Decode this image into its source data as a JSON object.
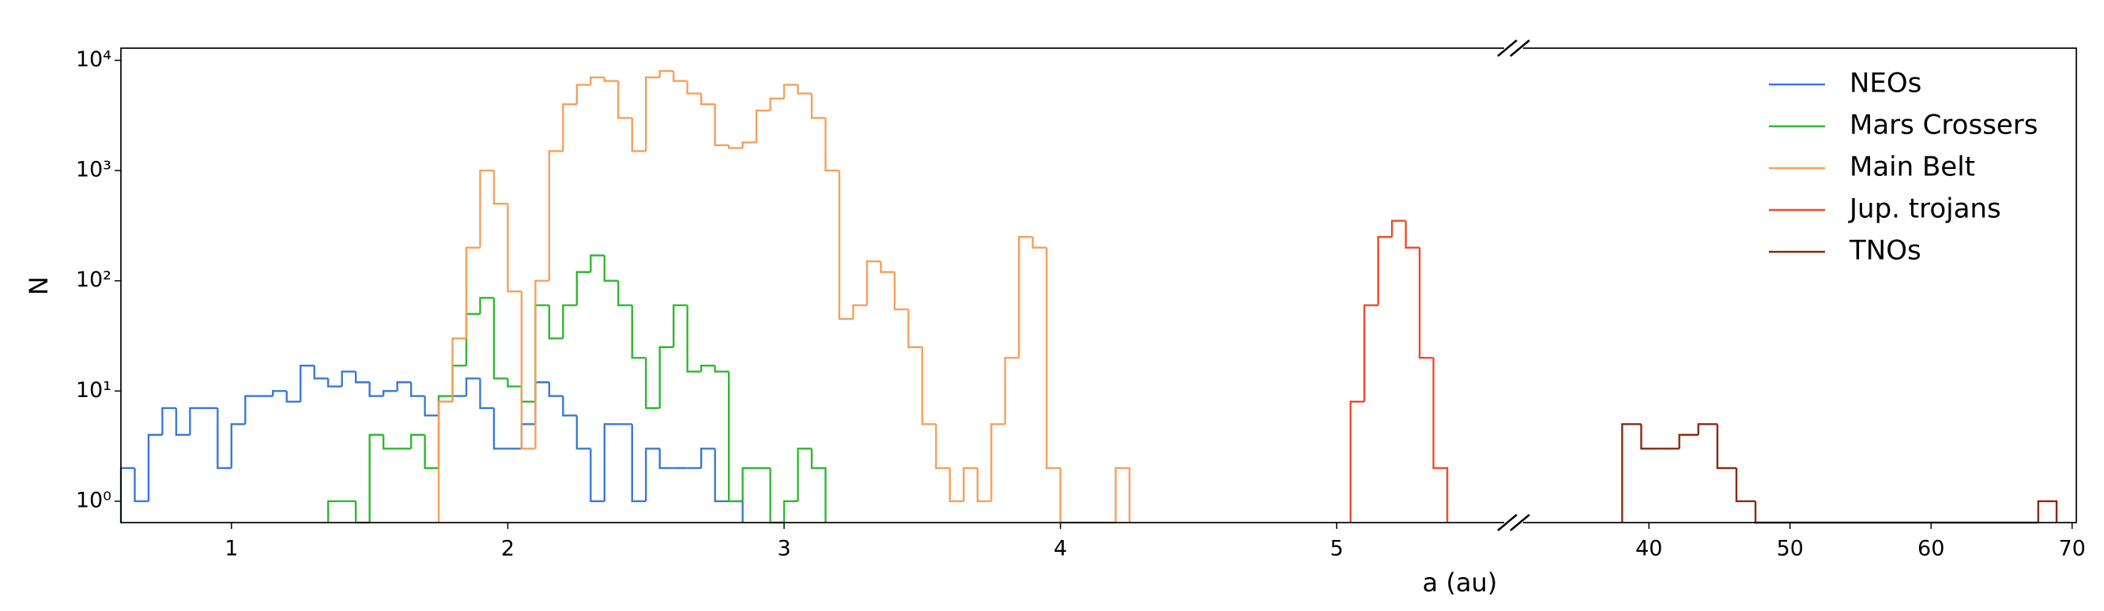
{
  "chart_data": {
    "type": "histogram",
    "xlabel": "a (au)",
    "ylabel": "N",
    "log_y": true,
    "legend": "upper right",
    "xlim": [
      0.6,
      5.64
    ],
    "xticks": [
      1,
      2,
      3,
      4,
      5
    ],
    "xlim_right": [
      30.4,
      70.3
    ],
    "xticks_right": [
      40,
      50,
      60,
      70
    ],
    "ylim": [
      0.64,
      12900
    ],
    "yticks": [
      {
        "value": 1,
        "label": "10⁰"
      },
      {
        "value": 10,
        "label": "10¹"
      },
      {
        "value": 100,
        "label": "10²"
      },
      {
        "value": 1000,
        "label": "10³"
      },
      {
        "value": 10000,
        "label": "10⁴"
      }
    ],
    "series": [
      {
        "name": "NEOs",
        "color": "#3a78d6",
        "panel": "left",
        "bins": [
          0.6,
          0.65,
          0.7,
          0.75,
          0.8,
          0.85,
          0.9,
          0.95,
          1.0,
          1.05,
          1.1,
          1.15,
          1.2,
          1.25,
          1.3,
          1.35,
          1.4,
          1.45,
          1.5,
          1.55,
          1.6,
          1.65,
          1.7,
          1.75,
          1.8,
          1.85,
          1.9,
          1.95,
          2.0,
          2.05,
          2.1,
          2.15,
          2.2,
          2.25,
          2.3,
          2.35,
          2.4,
          2.45,
          2.5,
          2.55,
          2.6,
          2.65,
          2.7,
          2.75,
          2.8,
          2.85
        ],
        "values": [
          2,
          1,
          4,
          7,
          4,
          7,
          7,
          2,
          5,
          9,
          9,
          10,
          8,
          17,
          13,
          11,
          15,
          12,
          9,
          10,
          12,
          9,
          6,
          8,
          9,
          13,
          7,
          3,
          3,
          5,
          12,
          9,
          6,
          3,
          1,
          5,
          5,
          1,
          3,
          2,
          2,
          2,
          3,
          1,
          1
        ]
      },
      {
        "name": "Mars Crossers",
        "color": "#2eb82e",
        "panel": "left",
        "bins": [
          1.35,
          1.4,
          1.45,
          1.5,
          1.55,
          1.6,
          1.65,
          1.7,
          1.75,
          1.8,
          1.85,
          1.9,
          1.95,
          2.0,
          2.05,
          2.1,
          2.15,
          2.2,
          2.25,
          2.3,
          2.35,
          2.4,
          2.45,
          2.5,
          2.55,
          2.6,
          2.65,
          2.7,
          2.75,
          2.8,
          2.85,
          2.9,
          2.95,
          3.0,
          3.05,
          3.1,
          3.15
        ],
        "values": [
          1,
          1,
          0,
          4,
          3,
          3,
          4,
          2,
          9,
          17,
          50,
          70,
          13,
          11,
          8,
          60,
          30,
          60,
          120,
          170,
          100,
          60,
          20,
          7,
          25,
          60,
          15,
          17,
          15,
          1,
          2,
          2,
          0,
          1,
          3,
          2
        ]
      },
      {
        "name": "Main Belt",
        "color": "#f5a05a",
        "panel": "left",
        "bins": [
          1.75,
          1.8,
          1.85,
          1.9,
          1.95,
          2.0,
          2.05,
          2.1,
          2.15,
          2.2,
          2.25,
          2.3,
          2.35,
          2.4,
          2.45,
          2.5,
          2.55,
          2.6,
          2.65,
          2.7,
          2.75,
          2.8,
          2.85,
          2.9,
          2.95,
          3.0,
          3.05,
          3.1,
          3.15,
          3.2,
          3.25,
          3.3,
          3.35,
          3.4,
          3.45,
          3.5,
          3.55,
          3.6,
          3.65,
          3.7,
          3.75,
          3.8,
          3.85,
          3.9,
          3.95,
          4.0,
          4.05,
          4.1,
          4.15,
          4.2,
          4.25
        ],
        "values": [
          8,
          30,
          200,
          1000,
          500,
          80,
          3,
          100,
          1500,
          4000,
          6000,
          7000,
          6500,
          3000,
          1500,
          7000,
          8000,
          6500,
          5000,
          4000,
          1700,
          1600,
          1800,
          3500,
          4500,
          6000,
          5000,
          3000,
          1000,
          45,
          60,
          150,
          120,
          55,
          25,
          5,
          2,
          1,
          2,
          1,
          5,
          20,
          250,
          200,
          2,
          0,
          0,
          0,
          0,
          2
        ]
      },
      {
        "name": "Jup. trojans",
        "color": "#ee4a2a",
        "panel": "left",
        "bins": [
          5.05,
          5.1,
          5.15,
          5.2,
          5.25,
          5.3,
          5.35,
          5.4
        ],
        "values": [
          8,
          60,
          250,
          350,
          200,
          20,
          2
        ]
      },
      {
        "name": "TNOs",
        "color": "#8b2a0e",
        "panel": "right",
        "bins": [
          38.1,
          39.45,
          40.8,
          42.15,
          43.5,
          44.85,
          46.2,
          47.55,
          67.6,
          68.9
        ],
        "values": [
          5,
          3,
          3,
          4,
          5,
          2,
          1,
          0,
          1
        ]
      }
    ]
  }
}
